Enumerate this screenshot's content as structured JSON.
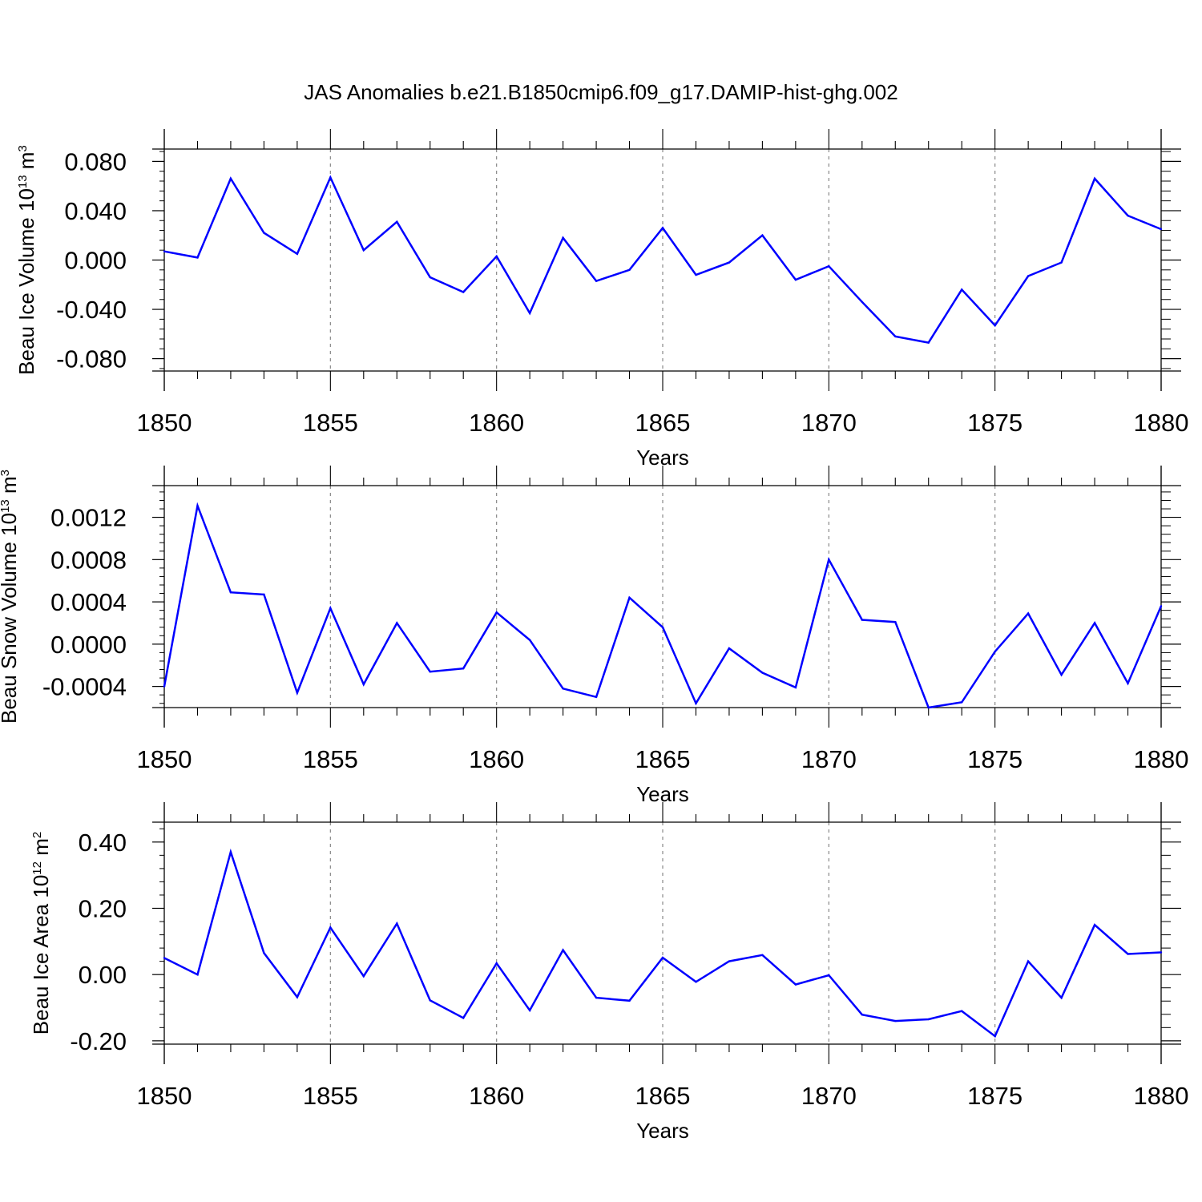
{
  "chart_data": [
    {
      "type": "line",
      "title": "JAS Anomalies b.e21.B1850cmip6.f09_g17.DAMIP-hist-ghg.002",
      "xlabel": "Years",
      "ylabel": "Beau Ice Volume 10",
      "ylabel_exp": "13",
      "ylabel_unit": " m",
      "ylabel_unit_exp": "3",
      "xlim": [
        1850,
        1880
      ],
      "ylim": [
        -0.09,
        0.09
      ],
      "yticks": [
        -0.08,
        -0.04,
        0.0,
        0.04,
        0.08
      ],
      "ytick_labels": [
        "-0.080",
        "-0.040",
        "0.000",
        "0.040",
        "0.080"
      ],
      "xticks": [
        1850,
        1855,
        1860,
        1865,
        1870,
        1875,
        1880
      ],
      "xtick_labels": [
        "1850",
        "1855",
        "1860",
        "1865",
        "1870",
        "1875",
        "1880"
      ],
      "grid": "vertical dashed at major x ticks",
      "series": [
        {
          "name": "Beau Ice Volume",
          "color": "#0000ff",
          "x": [
            1850,
            1851,
            1852,
            1853,
            1854,
            1855,
            1856,
            1857,
            1858,
            1859,
            1860,
            1861,
            1862,
            1863,
            1864,
            1865,
            1866,
            1867,
            1868,
            1869,
            1870,
            1871,
            1872,
            1873,
            1874,
            1875,
            1876,
            1877,
            1878,
            1879,
            1880
          ],
          "values": [
            0.007,
            0.002,
            0.066,
            0.022,
            0.005,
            0.067,
            0.008,
            0.031,
            -0.014,
            -0.026,
            0.003,
            -0.043,
            0.018,
            -0.017,
            -0.008,
            0.026,
            -0.012,
            -0.002,
            0.02,
            -0.016,
            -0.005,
            -0.034,
            -0.062,
            -0.067,
            -0.024,
            -0.053,
            -0.013,
            -0.002,
            0.066,
            0.036,
            0.025
          ]
        }
      ]
    },
    {
      "type": "line",
      "title": "",
      "xlabel": "Years",
      "ylabel": "Beau Snow Volume 10",
      "ylabel_exp": "13",
      "ylabel_unit": " m",
      "ylabel_unit_exp": "3",
      "xlim": [
        1850,
        1880
      ],
      "ylim": [
        -0.0006,
        0.0015
      ],
      "yticks": [
        -0.0004,
        0.0,
        0.0004,
        0.0008,
        0.0012
      ],
      "ytick_labels": [
        "-0.0004",
        "0.0000",
        "0.0004",
        "0.0008",
        "0.0012"
      ],
      "xticks": [
        1850,
        1855,
        1860,
        1865,
        1870,
        1875,
        1880
      ],
      "xtick_labels": [
        "1850",
        "1855",
        "1860",
        "1865",
        "1870",
        "1875",
        "1880"
      ],
      "grid": "vertical dashed at major x ticks",
      "series": [
        {
          "name": "Beau Snow Volume",
          "color": "#0000ff",
          "x": [
            1850,
            1851,
            1852,
            1853,
            1854,
            1855,
            1856,
            1857,
            1858,
            1859,
            1860,
            1861,
            1862,
            1863,
            1864,
            1865,
            1866,
            1867,
            1868,
            1869,
            1870,
            1871,
            1872,
            1873,
            1874,
            1875,
            1876,
            1877,
            1878,
            1879,
            1880
          ],
          "values": [
            -0.0004,
            0.00131,
            0.00049,
            0.00047,
            -0.00046,
            0.00034,
            -0.00038,
            0.0002,
            -0.00026,
            -0.00023,
            0.0003,
            4e-05,
            -0.00042,
            -0.0005,
            0.00044,
            0.00016,
            -0.00056,
            -4e-05,
            -0.00027,
            -0.00041,
            0.0008,
            0.00023,
            0.00021,
            -0.0006,
            -0.00055,
            -7e-05,
            0.00029,
            -0.00029,
            0.0002,
            -0.00037,
            0.00036
          ]
        }
      ]
    },
    {
      "type": "line",
      "title": "",
      "xlabel": "Years",
      "ylabel": "Beau Ice Area 10",
      "ylabel_exp": "12",
      "ylabel_unit": " m",
      "ylabel_unit_exp": "2",
      "xlim": [
        1850,
        1880
      ],
      "ylim": [
        -0.21,
        0.46
      ],
      "yticks": [
        -0.2,
        0.0,
        0.2,
        0.4
      ],
      "ytick_labels": [
        "-0.20",
        "0.00",
        "0.20",
        "0.40"
      ],
      "xticks": [
        1850,
        1855,
        1860,
        1865,
        1870,
        1875,
        1880
      ],
      "xtick_labels": [
        "1850",
        "1855",
        "1860",
        "1865",
        "1870",
        "1875",
        "1880"
      ],
      "grid": "vertical dashed at major x ticks",
      "series": [
        {
          "name": "Beau Ice Area",
          "color": "#0000ff",
          "x": [
            1850,
            1851,
            1852,
            1853,
            1854,
            1855,
            1856,
            1857,
            1858,
            1859,
            1860,
            1861,
            1862,
            1863,
            1864,
            1865,
            1866,
            1867,
            1868,
            1869,
            1870,
            1871,
            1872,
            1873,
            1874,
            1875,
            1876,
            1877,
            1878,
            1879,
            1880
          ],
          "values": [
            0.05,
            0.0,
            0.37,
            0.065,
            -0.068,
            0.142,
            -0.005,
            0.154,
            -0.078,
            -0.131,
            0.034,
            -0.108,
            0.074,
            -0.07,
            -0.079,
            0.051,
            -0.022,
            0.04,
            0.059,
            -0.03,
            -0.002,
            -0.121,
            -0.14,
            -0.135,
            -0.11,
            -0.186,
            0.04,
            -0.07,
            0.15,
            0.062,
            0.067
          ]
        }
      ]
    }
  ]
}
